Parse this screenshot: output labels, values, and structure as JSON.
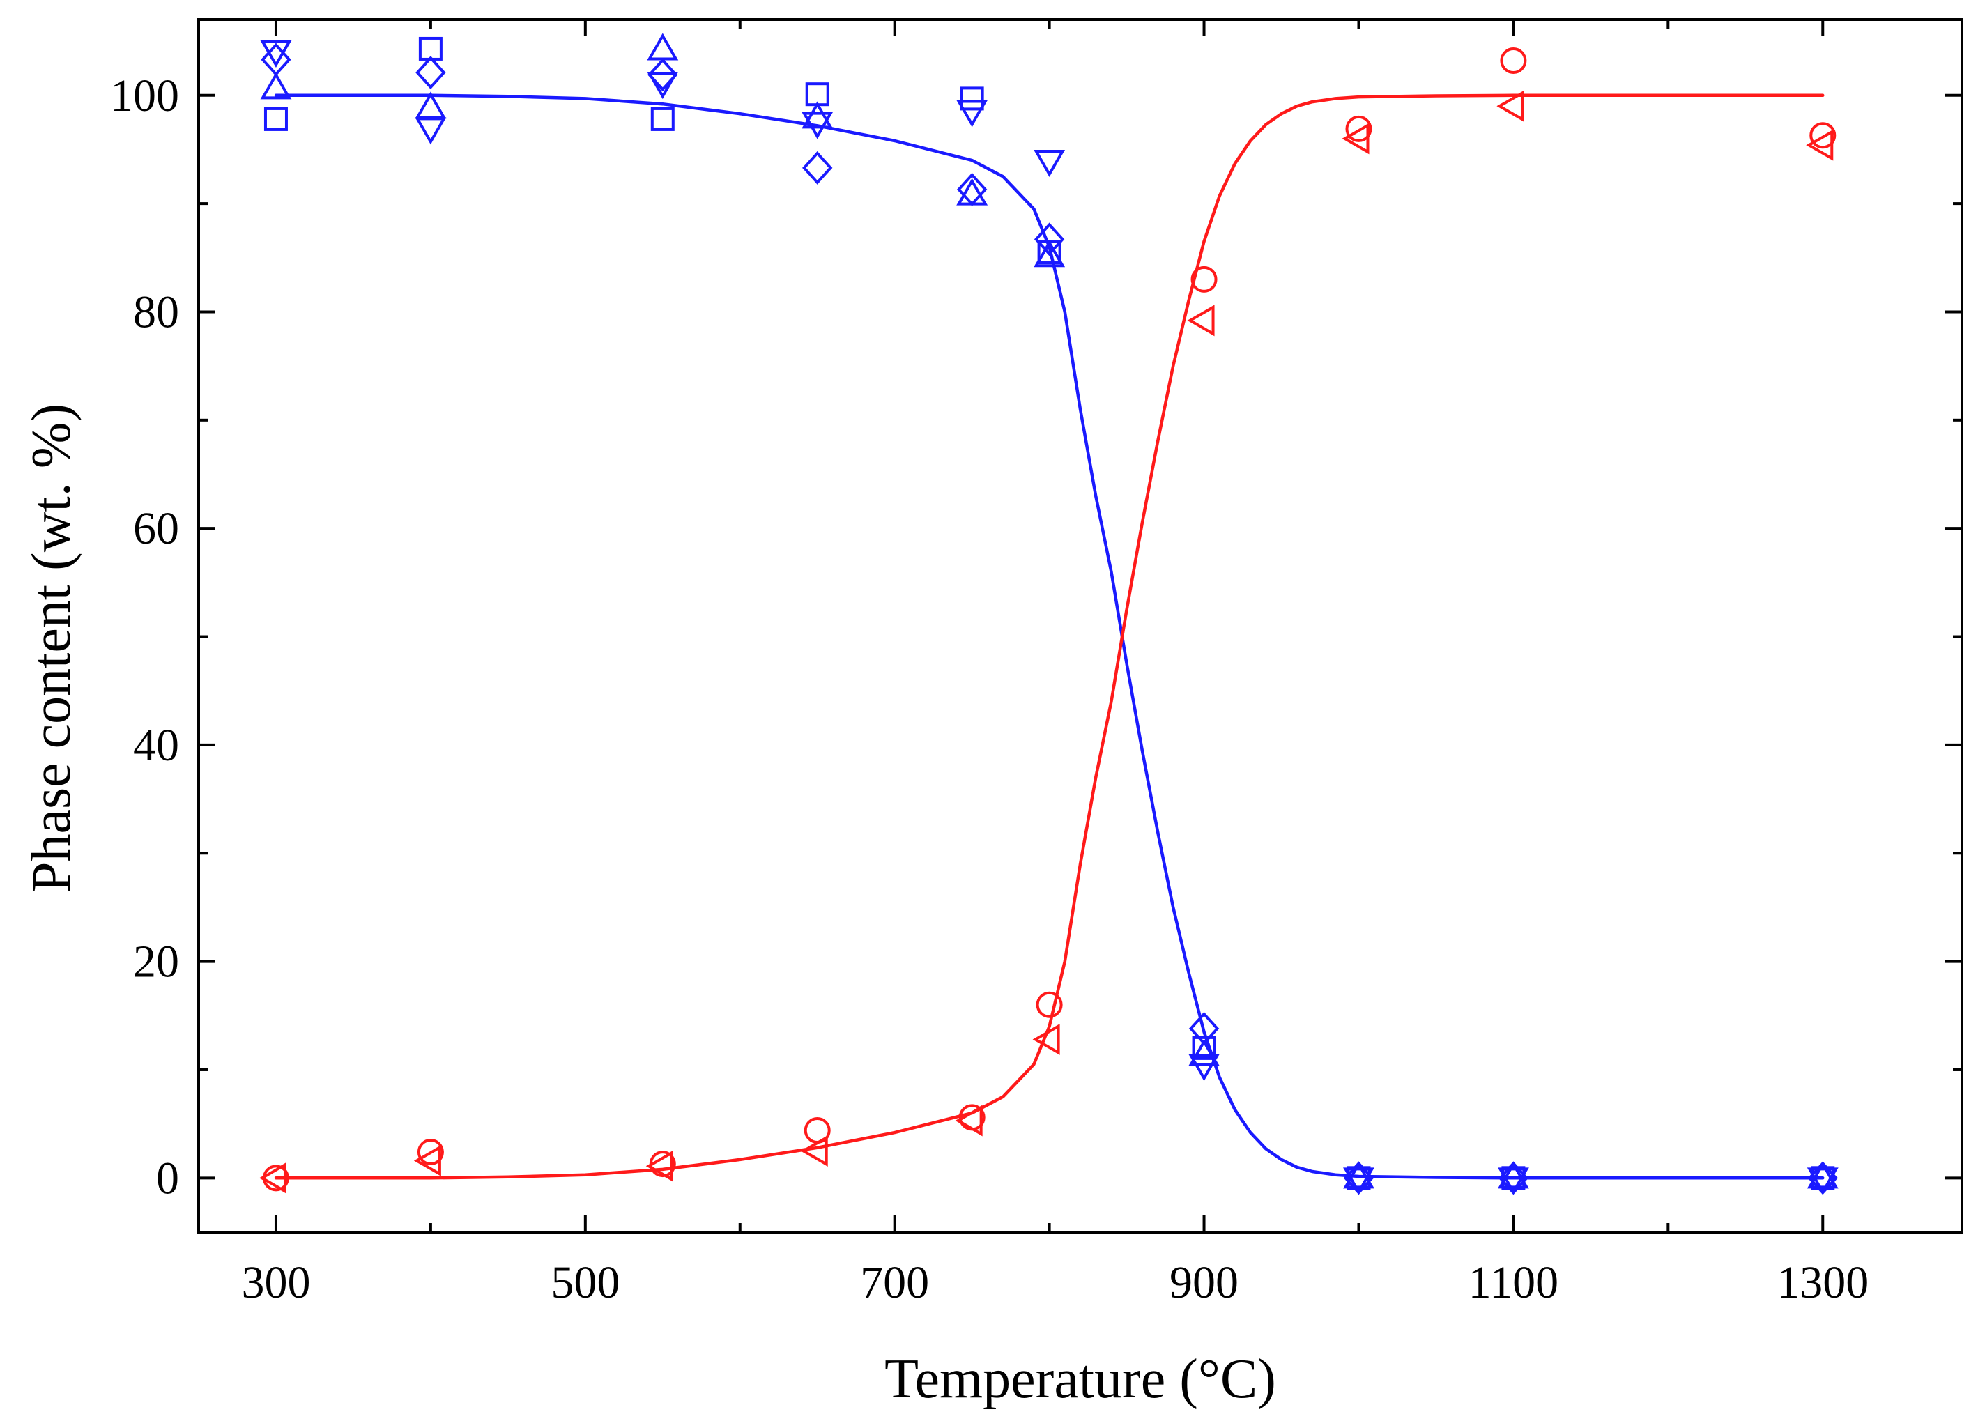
{
  "chart_data": {
    "type": "scatter",
    "title": "",
    "xlabel": "Temperature (°C)",
    "ylabel": "Phase content (wt. %)",
    "xlim": [
      250,
      1390
    ],
    "ylim": [
      -5,
      107
    ],
    "xticks": [
      300,
      500,
      700,
      900,
      1100,
      1300
    ],
    "xtick_labels": [
      "300",
      "500",
      "700",
      "900",
      "1100",
      "1300"
    ],
    "xminor": [
      400,
      600,
      800,
      1000,
      1200
    ],
    "yticks": [
      0,
      20,
      40,
      60,
      80,
      100
    ],
    "ytick_labels": [
      "0",
      "20",
      "40",
      "60",
      "80",
      "100"
    ],
    "yminor": [
      10,
      30,
      50,
      70,
      90
    ],
    "grid": false,
    "legend": "none",
    "colors": {
      "blue": "#1a1aff",
      "red": "#ff1a1a"
    },
    "series": [
      {
        "color": "blue",
        "marker": "square",
        "points": [
          [
            300,
            97.8
          ],
          [
            400,
            104.3
          ],
          [
            550,
            97.8
          ],
          [
            650,
            100.1
          ],
          [
            750,
            99.7
          ],
          [
            800,
            85.5
          ],
          [
            900,
            12.0
          ],
          [
            1000,
            0
          ],
          [
            1100,
            0
          ],
          [
            1300,
            0
          ]
        ]
      },
      {
        "color": "blue",
        "marker": "triangle-up",
        "points": [
          [
            300,
            100.6
          ],
          [
            400,
            98.8
          ],
          [
            550,
            104.2
          ],
          [
            650,
            97.9
          ],
          [
            750,
            90.8
          ],
          [
            800,
            85.1
          ],
          [
            900,
            11.3
          ],
          [
            1000,
            0
          ],
          [
            1100,
            0
          ],
          [
            1300,
            0
          ]
        ]
      },
      {
        "color": "blue",
        "marker": "triangle-down",
        "points": [
          [
            300,
            104.1
          ],
          [
            400,
            97.0
          ],
          [
            550,
            101.2
          ],
          [
            650,
            97.5
          ],
          [
            750,
            98.6
          ],
          [
            800,
            94.0
          ],
          [
            900,
            10.5
          ],
          [
            1000,
            0
          ],
          [
            1100,
            0
          ],
          [
            1300,
            0
          ]
        ]
      },
      {
        "color": "blue",
        "marker": "diamond",
        "points": [
          [
            300,
            103.3
          ],
          [
            400,
            102.1
          ],
          [
            550,
            101.9
          ],
          [
            650,
            93.3
          ],
          [
            750,
            91.3
          ],
          [
            800,
            86.7
          ],
          [
            900,
            13.8
          ],
          [
            1000,
            0
          ],
          [
            1100,
            0
          ],
          [
            1300,
            0
          ]
        ]
      },
      {
        "color": "red",
        "marker": "circle",
        "points": [
          [
            300,
            0
          ],
          [
            400,
            2.4
          ],
          [
            550,
            1.3
          ],
          [
            650,
            4.4
          ],
          [
            750,
            5.6
          ],
          [
            800,
            16.0
          ],
          [
            900,
            83.0
          ],
          [
            1000,
            96.9
          ],
          [
            1100,
            103.2
          ],
          [
            1300,
            96.3
          ]
        ]
      },
      {
        "color": "red",
        "marker": "triangle-left",
        "points": [
          [
            300,
            0
          ],
          [
            400,
            1.6
          ],
          [
            550,
            1.1
          ],
          [
            650,
            2.5
          ],
          [
            750,
            5.3
          ],
          [
            800,
            12.8
          ],
          [
            900,
            79.2
          ],
          [
            1000,
            96.0
          ],
          [
            1100,
            99.0
          ],
          [
            1300,
            95.4
          ]
        ]
      }
    ],
    "fit_curves": [
      {
        "color": "blue",
        "points": [
          [
            300,
            100
          ],
          [
            400,
            100
          ],
          [
            450,
            99.9
          ],
          [
            500,
            99.7
          ],
          [
            550,
            99.2
          ],
          [
            600,
            98.3
          ],
          [
            650,
            97.2
          ],
          [
            700,
            95.8
          ],
          [
            750,
            94.0
          ],
          [
            770,
            92.5
          ],
          [
            790,
            89.5
          ],
          [
            800,
            86.0
          ],
          [
            810,
            80.0
          ],
          [
            820,
            71.0
          ],
          [
            830,
            63.0
          ],
          [
            840,
            56.0
          ],
          [
            850,
            47.5
          ],
          [
            860,
            39.5
          ],
          [
            870,
            32.0
          ],
          [
            880,
            25.0
          ],
          [
            890,
            19.0
          ],
          [
            900,
            13.5
          ],
          [
            910,
            9.3
          ],
          [
            920,
            6.3
          ],
          [
            930,
            4.2
          ],
          [
            940,
            2.7
          ],
          [
            950,
            1.7
          ],
          [
            960,
            1.0
          ],
          [
            970,
            0.6
          ],
          [
            985,
            0.3
          ],
          [
            1000,
            0.15
          ],
          [
            1050,
            0.05
          ],
          [
            1100,
            0
          ],
          [
            1300,
            0
          ]
        ]
      },
      {
        "color": "red",
        "points": [
          [
            300,
            0
          ],
          [
            400,
            0
          ],
          [
            450,
            0.1
          ],
          [
            500,
            0.3
          ],
          [
            550,
            0.8
          ],
          [
            600,
            1.7
          ],
          [
            650,
            2.8
          ],
          [
            700,
            4.2
          ],
          [
            750,
            6.0
          ],
          [
            770,
            7.5
          ],
          [
            790,
            10.5
          ],
          [
            800,
            14.0
          ],
          [
            810,
            20.0
          ],
          [
            820,
            29.0
          ],
          [
            830,
            37.0
          ],
          [
            840,
            44.0
          ],
          [
            850,
            52.5
          ],
          [
            860,
            60.5
          ],
          [
            870,
            68.0
          ],
          [
            880,
            75.0
          ],
          [
            890,
            81.0
          ],
          [
            900,
            86.5
          ],
          [
            910,
            90.7
          ],
          [
            920,
            93.7
          ],
          [
            930,
            95.8
          ],
          [
            940,
            97.3
          ],
          [
            950,
            98.3
          ],
          [
            960,
            99.0
          ],
          [
            970,
            99.4
          ],
          [
            985,
            99.7
          ],
          [
            1000,
            99.85
          ],
          [
            1050,
            99.95
          ],
          [
            1100,
            100
          ],
          [
            1300,
            100
          ]
        ]
      }
    ]
  }
}
